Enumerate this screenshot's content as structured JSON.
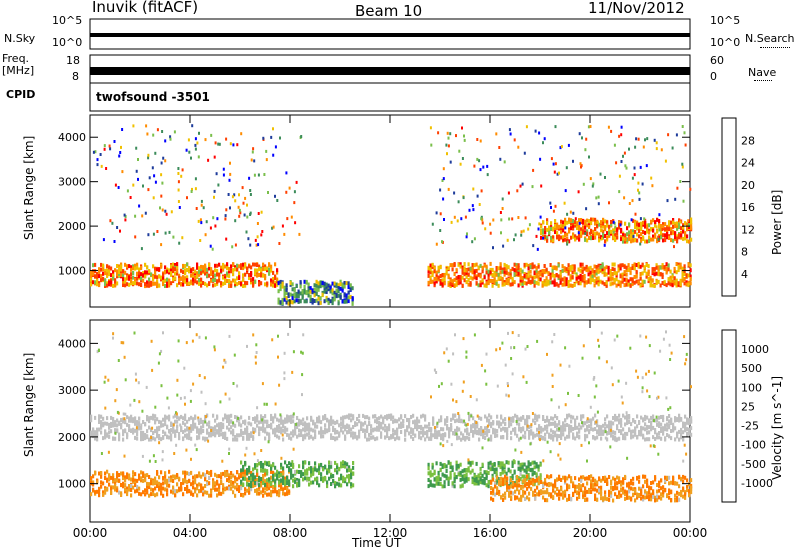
{
  "header": {
    "title": "Inuvik (fitACF)",
    "beam": "Beam 10",
    "date": "11/Nov/2012"
  },
  "strips": {
    "nsky_label": "N.Sky",
    "nsky_ticks": [
      "10^5",
      "10^0"
    ],
    "nsearch_label": "N.Search",
    "nsearch_ticks": [
      "10^5",
      "10^0"
    ],
    "freq_label_1": "Freq.",
    "freq_label_2": "[MHz]",
    "freq_ticks": [
      "18",
      "8"
    ],
    "nave_label": "Nave",
    "nave_ticks": [
      "60",
      "0"
    ],
    "cpid_label": "CPID",
    "cpid_value": "twofsound -3501"
  },
  "colors": {
    "power_scale": [
      "#0000ff",
      "#1e3c9b",
      "#3c8c5a",
      "#7abf4b",
      "#f0c000",
      "#ff8c00",
      "#ff4000",
      "#ff0000"
    ],
    "velocity_scale": [
      "#2040c0",
      "#2a6e8e",
      "#3e9a4e",
      "#7ac040",
      "#c0c0c0",
      "#f0a020",
      "#ff7a00",
      "#ff3a00",
      "#ff0000"
    ]
  },
  "chart_data": [
    {
      "type": "heatmap",
      "title": "",
      "xlabel": "Time UT",
      "ylabel": "Slant Range [km]",
      "x_ticks": [
        "00:00",
        "04:00",
        "08:00",
        "12:00",
        "16:00",
        "20:00",
        "00:00"
      ],
      "x_range_hours": [
        0,
        24
      ],
      "y_ticks": [
        "1000",
        "2000",
        "3000",
        "4000"
      ],
      "ylim": [
        180,
        4500
      ],
      "colorbar_label": "Power [dB]",
      "colorbar_ticks": [
        "28",
        "24",
        "20",
        "16",
        "12",
        "8",
        "4"
      ],
      "colorbar_range": [
        0,
        30
      ],
      "features": [
        {
          "time_start": 0.0,
          "time_end": 7.5,
          "range_center_km": 900,
          "value": 28
        },
        {
          "time_start": 7.5,
          "time_end": 10.5,
          "range_center_km": 500,
          "value": 16
        },
        {
          "time_start": 13.5,
          "time_end": 24.0,
          "range_center_km": 900,
          "value": 28
        },
        {
          "time_start": 18.0,
          "time_end": 24.0,
          "range_center_km": 1900,
          "value": 28
        }
      ]
    },
    {
      "type": "heatmap",
      "title": "",
      "xlabel": "Time UT",
      "ylabel": "Slant Range [km]",
      "x_ticks": [
        "00:00",
        "04:00",
        "08:00",
        "12:00",
        "16:00",
        "20:00",
        "00:00"
      ],
      "x_range_hours": [
        0,
        24
      ],
      "y_ticks": [
        "1000",
        "2000",
        "3000",
        "4000"
      ],
      "ylim": [
        180,
        4500
      ],
      "colorbar_label": "Velocity [m s^-1]",
      "colorbar_ticks": [
        "1000",
        "500",
        "100",
        "25",
        "-25",
        "-100",
        "-500",
        "-1000"
      ],
      "features": [
        {
          "time_start": 0.0,
          "time_end": 8.0,
          "range_center_km": 1000,
          "value": -100
        },
        {
          "time_start": 6.0,
          "time_end": 10.5,
          "range_center_km": 1200,
          "value": 100
        },
        {
          "time_start": 13.5,
          "time_end": 18.0,
          "range_center_km": 1200,
          "value": 100
        },
        {
          "time_start": 16.0,
          "time_end": 24.0,
          "range_center_km": 900,
          "value": -100
        },
        {
          "time_start": 0.0,
          "time_end": 24.0,
          "range_center_km": 2200,
          "value": 0
        }
      ]
    }
  ]
}
